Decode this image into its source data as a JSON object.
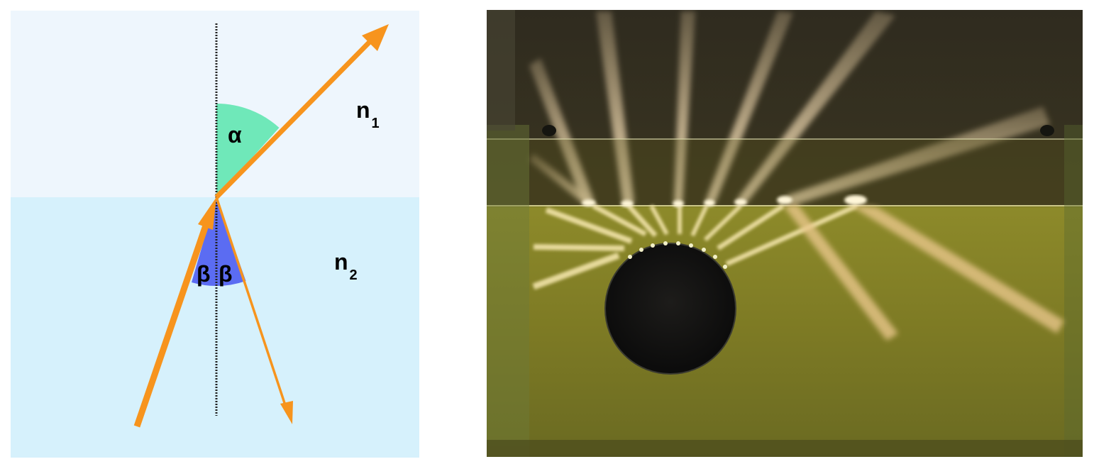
{
  "diagram": {
    "medium_top": {
      "label": "n",
      "subscript": "1"
    },
    "medium_bottom": {
      "label": "n",
      "subscript": "2"
    },
    "angles": {
      "alpha": "α",
      "beta": "β"
    },
    "colors": {
      "upper_medium": "#eef6fd",
      "lower_medium": "#d6f1fc",
      "ray": "#f7941d",
      "alpha_wedge": "#6fe8b9",
      "beta_wedge": "#5b6cf2",
      "normal_line": "#222222"
    }
  },
  "photo": {
    "colors": {
      "background": "#2c2a1c",
      "water": "#8e8a2c",
      "disc": "#131212",
      "beam": "#ffd79a"
    }
  }
}
